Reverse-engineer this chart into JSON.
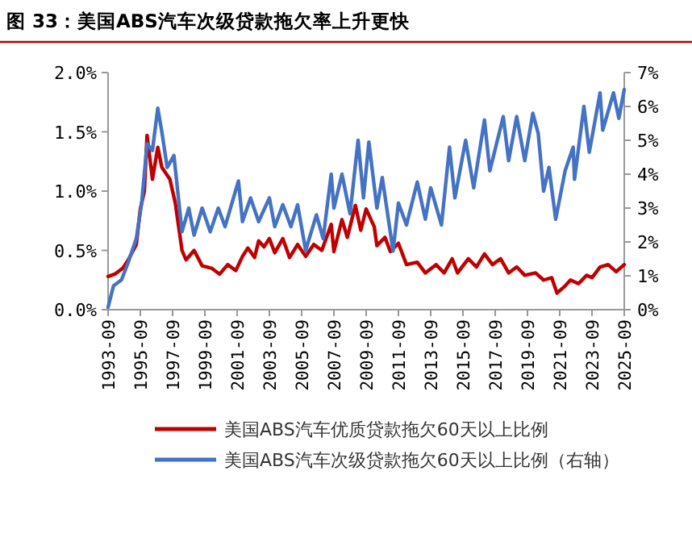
{
  "chart_data": {
    "type": "line",
    "title": "图 33：美国ABS汽车次级贷款拖欠率上升更快",
    "xlim": [
      "1993-09",
      "2025-09"
    ],
    "xticks": [
      "1993-09",
      "1995-09",
      "1997-09",
      "1999-09",
      "2001-09",
      "2003-09",
      "2005-09",
      "2007-09",
      "2009-09",
      "2011-09",
      "2013-09",
      "2015-09",
      "2017-09",
      "2019-09",
      "2021-09",
      "2023-09",
      "2025-09"
    ],
    "ylim": [
      0,
      2
    ],
    "yticks": [
      {
        "value": 0,
        "label": "0.0%"
      },
      {
        "value": 0.5,
        "label": "0.5%"
      },
      {
        "value": 1,
        "label": "1.0%"
      },
      {
        "value": 1.5,
        "label": "1.5%"
      },
      {
        "value": 2,
        "label": "2.0%"
      }
    ],
    "y2lim": [
      0,
      7
    ],
    "y2ticks": [
      {
        "value": 0,
        "label": "0%"
      },
      {
        "value": 1,
        "label": "1%"
      },
      {
        "value": 2,
        "label": "2%"
      },
      {
        "value": 3,
        "label": "3%"
      },
      {
        "value": 4,
        "label": "4%"
      },
      {
        "value": 5,
        "label": "5%"
      },
      {
        "value": 6,
        "label": "6%"
      },
      {
        "value": 7,
        "label": "7%"
      }
    ],
    "grid": false,
    "legend": "bottom",
    "series": [
      {
        "name": "美国ABS汽车优质贷款拖欠60天以上比例",
        "color": "#c00000",
        "x": [
          "1993-09",
          "1994-02",
          "1994-08",
          "1994-12",
          "1995-06",
          "1995-09",
          "1995-12",
          "1996-02",
          "1996-06",
          "1996-10",
          "1997-01",
          "1997-07",
          "1997-11",
          "1998-04",
          "1998-07",
          "1999-01",
          "1999-07",
          "2000-02",
          "2000-08",
          "2001-02",
          "2001-08",
          "2002-01",
          "2002-05",
          "2002-10",
          "2003-01",
          "2003-05",
          "2003-09",
          "2004-01",
          "2004-07",
          "2004-12",
          "2005-06",
          "2005-12",
          "2006-06",
          "2006-12",
          "2007-07",
          "2007-09",
          "2008-03",
          "2008-07",
          "2009-01",
          "2009-05",
          "2009-09",
          "2010-03",
          "2010-05",
          "2010-11",
          "2011-03",
          "2011-09",
          "2012-03",
          "2012-11",
          "2013-05",
          "2014-01",
          "2014-07",
          "2015-01",
          "2015-05",
          "2016-01",
          "2016-07",
          "2017-01",
          "2017-07",
          "2018-01",
          "2018-07",
          "2019-01",
          "2019-07",
          "2020-03",
          "2020-09",
          "2021-03",
          "2021-07",
          "2022-01",
          "2022-05",
          "2022-11",
          "2023-05",
          "2023-09",
          "2024-03",
          "2024-09",
          "2025-03",
          "2025-09"
        ],
        "values": [
          0.28,
          0.3,
          0.35,
          0.42,
          0.55,
          0.85,
          1.0,
          1.47,
          1.1,
          1.37,
          1.2,
          1.1,
          0.9,
          0.5,
          0.42,
          0.5,
          0.37,
          0.35,
          0.3,
          0.38,
          0.33,
          0.45,
          0.52,
          0.44,
          0.58,
          0.53,
          0.6,
          0.48,
          0.6,
          0.44,
          0.55,
          0.45,
          0.55,
          0.5,
          0.72,
          0.49,
          0.76,
          0.61,
          0.88,
          0.67,
          0.85,
          0.7,
          0.54,
          0.61,
          0.49,
          0.56,
          0.38,
          0.4,
          0.31,
          0.38,
          0.31,
          0.43,
          0.31,
          0.43,
          0.36,
          0.47,
          0.38,
          0.43,
          0.31,
          0.36,
          0.29,
          0.31,
          0.25,
          0.27,
          0.14,
          0.2,
          0.25,
          0.22,
          0.29,
          0.27,
          0.36,
          0.38,
          0.32,
          0.38
        ]
      },
      {
        "name": "美国ABS汽车次级贷款拖欠60天以上比例（右轴）",
        "color": "#4472c4",
        "axis": "y2",
        "x": [
          "1993-09",
          "1994-01",
          "1994-07",
          "1994-12",
          "1995-06",
          "1995-10",
          "1996-02",
          "1996-06",
          "1996-10",
          "1997-01",
          "1997-05",
          "1997-10",
          "1998-04",
          "1998-09",
          "1999-01",
          "1999-07",
          "2000-01",
          "2000-07",
          "2000-12",
          "2001-10",
          "2002-01",
          "2002-07",
          "2003-01",
          "2003-09",
          "2004-01",
          "2004-07",
          "2005-01",
          "2005-06",
          "2005-12",
          "2006-08",
          "2007-01",
          "2007-07",
          "2007-09",
          "2008-03",
          "2008-09",
          "2009-03",
          "2009-07",
          "2009-11",
          "2010-05",
          "2010-09",
          "2011-05",
          "2011-09",
          "2012-03",
          "2012-11",
          "2013-05",
          "2013-09",
          "2014-05",
          "2014-11",
          "2015-03",
          "2015-11",
          "2016-05",
          "2017-01",
          "2017-05",
          "2018-03",
          "2018-07",
          "2019-01",
          "2019-07",
          "2020-01",
          "2020-05",
          "2020-09",
          "2021-01",
          "2021-06",
          "2022-01",
          "2022-07",
          "2022-08",
          "2023-03",
          "2023-07",
          "2024-03",
          "2024-05",
          "2025-01",
          "2025-05",
          "2025-09"
        ],
        "values": [
          0.07,
          0.7,
          0.88,
          1.4,
          2.1,
          3.15,
          4.9,
          4.7,
          5.95,
          5.25,
          4.2,
          4.55,
          2.3,
          3.0,
          2.2,
          3.0,
          2.3,
          3.0,
          2.45,
          3.8,
          2.6,
          3.3,
          2.6,
          3.3,
          2.45,
          3.1,
          2.45,
          3.1,
          1.75,
          2.8,
          2.1,
          4.0,
          3.0,
          4.0,
          2.83,
          5.0,
          3.3,
          4.95,
          3.0,
          3.9,
          1.73,
          3.15,
          2.5,
          3.77,
          2.67,
          3.6,
          2.5,
          4.8,
          3.3,
          5.0,
          3.6,
          5.6,
          4.1,
          5.7,
          4.4,
          5.7,
          4.4,
          5.8,
          5.2,
          3.5,
          4.2,
          2.67,
          4.1,
          4.8,
          3.85,
          6.0,
          4.65,
          6.4,
          5.3,
          6.4,
          5.65,
          6.5
        ]
      }
    ]
  }
}
